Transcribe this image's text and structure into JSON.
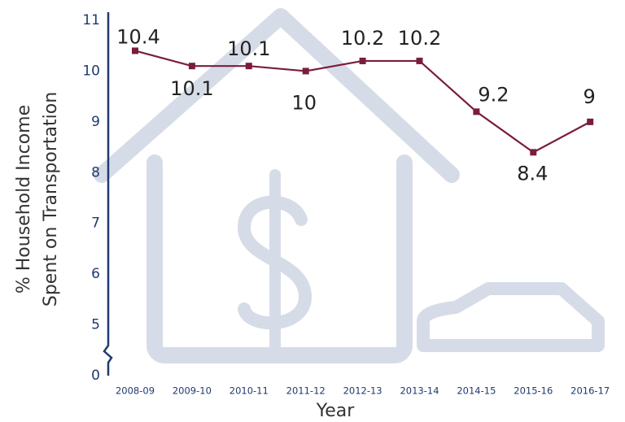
{
  "chart_data": {
    "type": "line",
    "ylabel": [
      "% Household Income",
      "Spent on Transportation"
    ],
    "xlabel": "Year",
    "categories": [
      "2008-09",
      "2009-10",
      "2010-11",
      "2011-12",
      "2012-13",
      "2013-14",
      "2014-15",
      "2015-16",
      "2016-17"
    ],
    "series": [
      {
        "color": "#7a1c3e",
        "values": [
          10.4,
          10.1,
          10.1,
          10,
          10.2,
          10.2,
          9.2,
          8.4,
          9
        ]
      }
    ],
    "ylim": [
      0,
      11
    ],
    "yticks": [
      0,
      5,
      6,
      7,
      8,
      9,
      10,
      11
    ],
    "axis_break": [
      0,
      5
    ],
    "grid": false
  }
}
